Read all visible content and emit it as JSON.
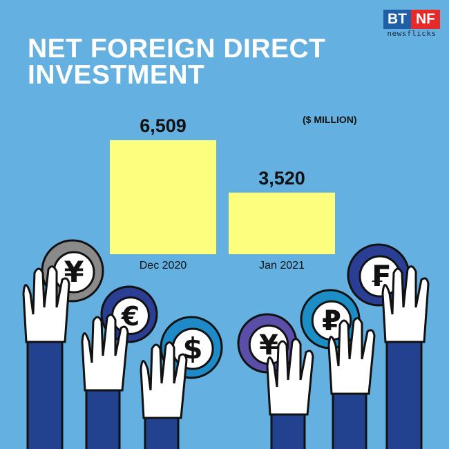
{
  "title_lines": [
    "NET FOREIGN DIRECT",
    "INVESTMENT"
  ],
  "logo": {
    "left": "BT",
    "right": "NF",
    "sub": "newsflicks",
    "text": "BT NF newsflicks"
  },
  "colors": {
    "background": "#63b0e1",
    "bar": "#fdfd7e",
    "title": "#ffffff",
    "sleeve": "#22418f"
  },
  "icons": [
    "yen-coin-icon",
    "euro-coin-icon",
    "dollar-coin-icon",
    "yen-coin-icon",
    "ruble-coin-icon",
    "franc-coin-icon",
    "raised-hand-icon"
  ],
  "chart_data": {
    "type": "bar",
    "title": "NET FOREIGN DIRECT INVESTMENT",
    "unit_label": "($ MILLION)",
    "categories": [
      "Dec 2020",
      "Jan 2021"
    ],
    "values": [
      6509,
      3520
    ],
    "value_labels": [
      "6,509",
      "3,520"
    ],
    "ylim": [
      0,
      6509
    ],
    "grid": false
  }
}
